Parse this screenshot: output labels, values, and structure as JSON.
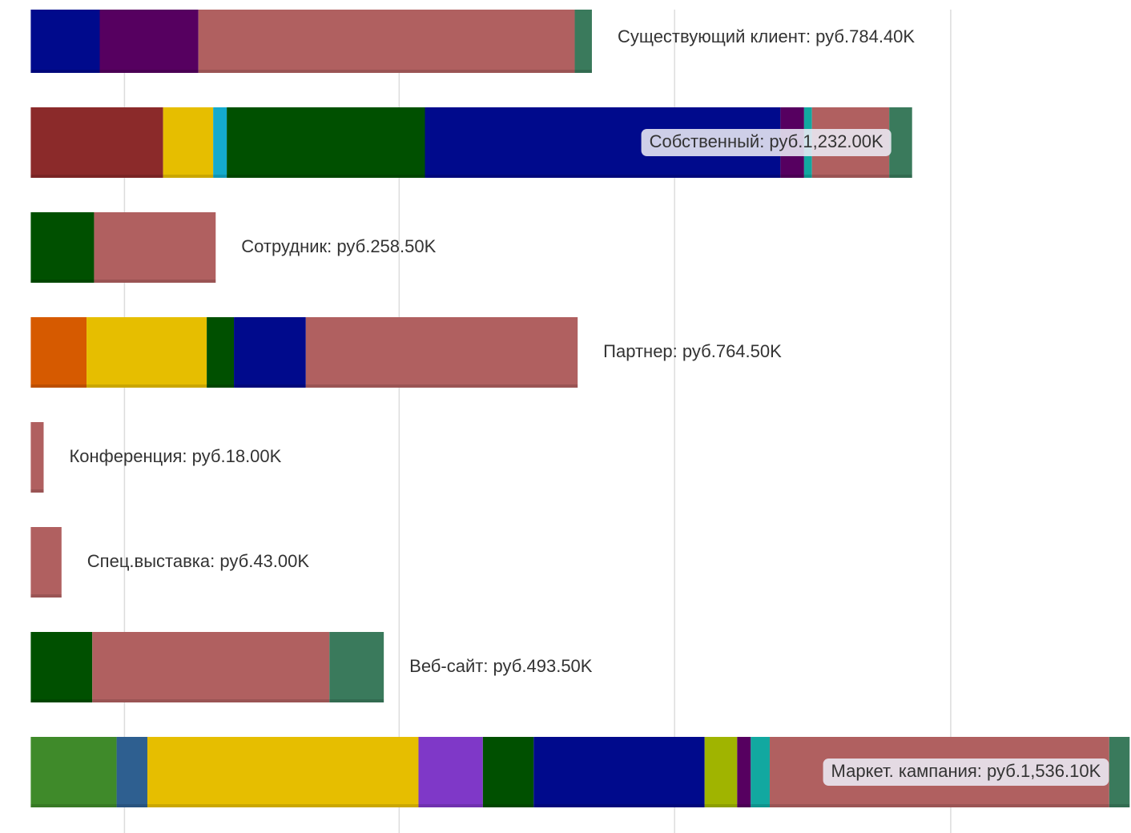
{
  "chart_data": {
    "type": "bar",
    "orientation": "horizontal",
    "stacked": true,
    "grid": true,
    "xlim": [
      -43,
      1538
    ],
    "xticks": [
      131,
      515,
      900,
      1286
    ],
    "categories": [
      "Существующий клиент: руб.784.40K",
      "Собственный: руб.1,232.00K",
      "Сотрудник: руб.258.50K",
      "Партнер: руб.764.50K",
      "Конференция: руб.18.00K",
      "Спец.выставка: руб.43.00K",
      "Веб-сайт: руб.493.50K",
      "Маркет. кампания: руб.1,536.10K"
    ],
    "segments": [
      [
        {
          "value": 96.4,
          "color": "#000a8c"
        },
        {
          "value": 138,
          "color": "#560060"
        },
        {
          "value": 526,
          "color": "#b06060"
        },
        {
          "value": 24,
          "color": "#3a7a5c"
        }
      ],
      [
        {
          "value": 185,
          "color": "#8b2a2a"
        },
        {
          "value": 70,
          "color": "#e6be00"
        },
        {
          "value": 19,
          "color": "#14aacc"
        },
        {
          "value": 277,
          "color": "#005000"
        },
        {
          "value": 497,
          "color": "#000a8c"
        },
        {
          "value": 33,
          "color": "#560060"
        },
        {
          "value": 11,
          "color": "#12a8a0"
        },
        {
          "value": 108,
          "color": "#b06060"
        },
        {
          "value": 32,
          "color": "#3a7a5c"
        }
      ],
      [
        {
          "value": 88.5,
          "color": "#005000"
        },
        {
          "value": 170,
          "color": "#b06060"
        }
      ],
      [
        {
          "value": 78,
          "color": "#d65a00"
        },
        {
          "value": 168,
          "color": "#e6be00"
        },
        {
          "value": 38,
          "color": "#005000"
        },
        {
          "value": 100.5,
          "color": "#000a8c"
        },
        {
          "value": 380,
          "color": "#b06060"
        }
      ],
      [
        {
          "value": 18,
          "color": "#b06060"
        }
      ],
      [
        {
          "value": 43,
          "color": "#b06060"
        }
      ],
      [
        {
          "value": 86,
          "color": "#005000"
        },
        {
          "value": 331.5,
          "color": "#b06060"
        },
        {
          "value": 76,
          "color": "#3a7a5c"
        }
      ],
      [
        {
          "value": 120,
          "color": "#3f8a2a"
        },
        {
          "value": 43,
          "color": "#2e5f90"
        },
        {
          "value": 379,
          "color": "#e6be00"
        },
        {
          "value": 90,
          "color": "#7f38c8"
        },
        {
          "value": 71,
          "color": "#005000"
        },
        {
          "value": 239,
          "color": "#000a8c"
        },
        {
          "value": 45.5,
          "color": "#a0b400"
        },
        {
          "value": 19,
          "color": "#560060"
        },
        {
          "value": 26.5,
          "color": "#12a8a0"
        },
        {
          "value": 474.6,
          "color": "#b06060"
        },
        {
          "value": 28.5,
          "color": "#3a7a5c"
        }
      ]
    ]
  }
}
